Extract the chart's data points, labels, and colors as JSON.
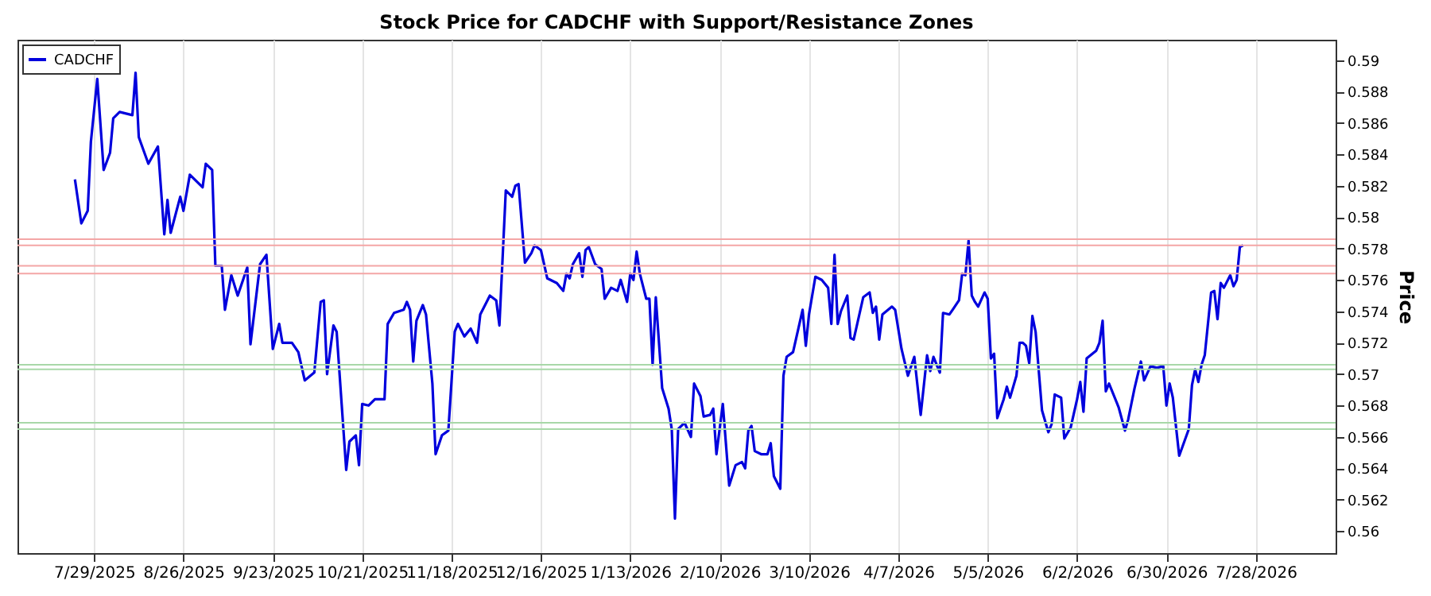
{
  "chart_data": {
    "type": "line",
    "title": "Stock Price for CADCHF with Support/Resistance Zones",
    "ylabel": "Price",
    "x": [
      "2025-07-23",
      "2025-07-25",
      "2025-07-27",
      "2025-07-28",
      "2025-07-30",
      "2025-08-01",
      "2025-08-03",
      "2025-08-04",
      "2025-08-06",
      "2025-08-08",
      "2025-08-10",
      "2025-08-11",
      "2025-08-12",
      "2025-08-15",
      "2025-08-18",
      "2025-08-20",
      "2025-08-21",
      "2025-08-22",
      "2025-08-25",
      "2025-08-26",
      "2025-08-28",
      "2025-09-01",
      "2025-09-02",
      "2025-09-04",
      "2025-09-05",
      "2025-09-07",
      "2025-09-08",
      "2025-09-10",
      "2025-09-12",
      "2025-09-15",
      "2025-09-16",
      "2025-09-19",
      "2025-09-21",
      "2025-09-23",
      "2025-09-25",
      "2025-09-26",
      "2025-09-29",
      "2025-10-01",
      "2025-10-03",
      "2025-10-06",
      "2025-10-08",
      "2025-10-09",
      "2025-10-10",
      "2025-10-12",
      "2025-10-13",
      "2025-10-16",
      "2025-10-17",
      "2025-10-19",
      "2025-10-20",
      "2025-10-21",
      "2025-10-23",
      "2025-10-25",
      "2025-10-28",
      "2025-10-29",
      "2025-10-31",
      "2025-11-03",
      "2025-11-04",
      "2025-11-05",
      "2025-11-06",
      "2025-11-07",
      "2025-11-09",
      "2025-11-10",
      "2025-11-12",
      "2025-11-13",
      "2025-11-15",
      "2025-11-17",
      "2025-11-19",
      "2025-11-20",
      "2025-11-22",
      "2025-11-24",
      "2025-11-26",
      "2025-11-27",
      "2025-11-29",
      "2025-11-30",
      "2025-12-02",
      "2025-12-03",
      "2025-12-05",
      "2025-12-07",
      "2025-12-08",
      "2025-12-09",
      "2025-12-11",
      "2025-12-13",
      "2025-12-14",
      "2025-12-16",
      "2025-12-18",
      "2025-12-21",
      "2025-12-23",
      "2025-12-24",
      "2025-12-25",
      "2025-12-26",
      "2025-12-28",
      "2025-12-29",
      "2025-12-30",
      "2025-12-31",
      "2026-01-02",
      "2026-01-04",
      "2026-01-05",
      "2026-01-07",
      "2026-01-09",
      "2026-01-10",
      "2026-01-12",
      "2026-01-13",
      "2026-01-14",
      "2026-01-15",
      "2026-01-16",
      "2026-01-18",
      "2026-01-19",
      "2026-01-20",
      "2026-01-21",
      "2026-01-23",
      "2026-01-25",
      "2026-01-26",
      "2026-01-27",
      "2026-01-28",
      "2026-01-30",
      "2026-02-01",
      "2026-02-02",
      "2026-02-04",
      "2026-02-05",
      "2026-02-07",
      "2026-02-08",
      "2026-02-09",
      "2026-02-11",
      "2026-02-13",
      "2026-02-15",
      "2026-02-17",
      "2026-02-18",
      "2026-02-19",
      "2026-02-20",
      "2026-02-21",
      "2026-02-23",
      "2026-02-25",
      "2026-02-26",
      "2026-02-27",
      "2026-03-01",
      "2026-03-02",
      "2026-03-03",
      "2026-03-05",
      "2026-03-08",
      "2026-03-09",
      "2026-03-10",
      "2026-03-12",
      "2026-03-14",
      "2026-03-16",
      "2026-03-17",
      "2026-03-18",
      "2026-03-19",
      "2026-03-20",
      "2026-03-22",
      "2026-03-23",
      "2026-03-24",
      "2026-03-27",
      "2026-03-29",
      "2026-03-30",
      "2026-03-31",
      "2026-04-01",
      "2026-04-02",
      "2026-04-05",
      "2026-04-06",
      "2026-04-08",
      "2026-04-10",
      "2026-04-12",
      "2026-04-14",
      "2026-04-16",
      "2026-04-17",
      "2026-04-18",
      "2026-04-20",
      "2026-04-21",
      "2026-04-23",
      "2026-04-24",
      "2026-04-26",
      "2026-04-27",
      "2026-04-28",
      "2026-04-29",
      "2026-04-30",
      "2026-05-01",
      "2026-05-02",
      "2026-05-04",
      "2026-05-05",
      "2026-05-06",
      "2026-05-07",
      "2026-05-08",
      "2026-05-10",
      "2026-05-11",
      "2026-05-12",
      "2026-05-14",
      "2026-05-15",
      "2026-05-16",
      "2026-05-17",
      "2026-05-18",
      "2026-05-19",
      "2026-05-20",
      "2026-05-22",
      "2026-05-24",
      "2026-05-25",
      "2026-05-26",
      "2026-05-28",
      "2026-05-29",
      "2026-05-31",
      "2026-06-02",
      "2026-06-03",
      "2026-06-04",
      "2026-06-05",
      "2026-06-08",
      "2026-06-09",
      "2026-06-10",
      "2026-06-11",
      "2026-06-12",
      "2026-06-15",
      "2026-06-17",
      "2026-06-18",
      "2026-06-20",
      "2026-06-22",
      "2026-06-23",
      "2026-06-25",
      "2026-06-27",
      "2026-06-29",
      "2026-06-30",
      "2026-07-01",
      "2026-07-02",
      "2026-07-04",
      "2026-07-07",
      "2026-07-08",
      "2026-07-09",
      "2026-07-10",
      "2026-07-11",
      "2026-07-12",
      "2026-07-14",
      "2026-07-15",
      "2026-07-16",
      "2026-07-17",
      "2026-07-18",
      "2026-07-20",
      "2026-07-21",
      "2026-07-22",
      "2026-07-23",
      "2026-07-24"
    ],
    "series": [
      {
        "name": "CADCHF",
        "color": "#0000dd",
        "values": [
          0.5824,
          0.5796,
          0.5804,
          0.5848,
          0.5888,
          0.583,
          0.5841,
          0.5863,
          0.5867,
          0.5866,
          0.5865,
          0.5892,
          0.5851,
          0.5834,
          0.5845,
          0.5789,
          0.5811,
          0.579,
          0.5813,
          0.5804,
          0.5827,
          0.5819,
          0.5834,
          0.583,
          0.5769,
          0.5769,
          0.5741,
          0.5763,
          0.575,
          0.5768,
          0.5719,
          0.577,
          0.5776,
          0.5716,
          0.5732,
          0.572,
          0.572,
          0.5714,
          0.5696,
          0.5701,
          0.5746,
          0.5747,
          0.57,
          0.5731,
          0.5727,
          0.5639,
          0.5657,
          0.5661,
          0.5642,
          0.5681,
          0.568,
          0.5684,
          0.5684,
          0.5732,
          0.5739,
          0.5741,
          0.5746,
          0.5741,
          0.5708,
          0.5734,
          0.5744,
          0.5738,
          0.5694,
          0.5649,
          0.5661,
          0.5664,
          0.5727,
          0.5732,
          0.5724,
          0.5729,
          0.572,
          0.5738,
          0.5746,
          0.575,
          0.5747,
          0.5731,
          0.5817,
          0.5813,
          0.582,
          0.5821,
          0.5771,
          0.5777,
          0.5782,
          0.5779,
          0.5761,
          0.5758,
          0.5753,
          0.5764,
          0.5761,
          0.577,
          0.5777,
          0.5762,
          0.5779,
          0.5781,
          0.577,
          0.5767,
          0.5748,
          0.5755,
          0.5753,
          0.576,
          0.5746,
          0.5764,
          0.576,
          0.5778,
          0.5764,
          0.5748,
          0.5748,
          0.5706,
          0.5749,
          0.5691,
          0.5678,
          0.5665,
          0.5608,
          0.5665,
          0.5669,
          0.566,
          0.5694,
          0.5686,
          0.5673,
          0.5674,
          0.5678,
          0.5649,
          0.5681,
          0.5629,
          0.5642,
          0.5644,
          0.564,
          0.5664,
          0.5667,
          0.5651,
          0.5649,
          0.5649,
          0.5656,
          0.5635,
          0.5627,
          0.5699,
          0.5711,
          0.5714,
          0.5741,
          0.5718,
          0.5738,
          0.5762,
          0.576,
          0.5755,
          0.5732,
          0.5776,
          0.5732,
          0.574,
          0.575,
          0.5723,
          0.5722,
          0.5749,
          0.5752,
          0.5739,
          0.5743,
          0.5722,
          0.5738,
          0.5743,
          0.5741,
          0.5716,
          0.5699,
          0.5711,
          0.5674,
          0.5712,
          0.5702,
          0.5711,
          0.5701,
          0.5739,
          0.5738,
          0.5741,
          0.5747,
          0.5764,
          0.5763,
          0.5785,
          0.575,
          0.5746,
          0.5743,
          0.5752,
          0.5748,
          0.571,
          0.5713,
          0.5672,
          0.5684,
          0.5692,
          0.5685,
          0.5699,
          0.572,
          0.572,
          0.5718,
          0.5707,
          0.5737,
          0.5727,
          0.5677,
          0.5663,
          0.5668,
          0.5687,
          0.5685,
          0.5659,
          0.5666,
          0.5684,
          0.5695,
          0.5676,
          0.571,
          0.5715,
          0.572,
          0.5734,
          0.5689,
          0.5694,
          0.5679,
          0.5664,
          0.5671,
          0.5691,
          0.5708,
          0.5696,
          0.5705,
          0.5704,
          0.5705,
          0.568,
          0.5694,
          0.5685,
          0.5648,
          0.5665,
          0.5693,
          0.5703,
          0.5695,
          0.5706,
          0.5712,
          0.5752,
          0.5753,
          0.5735,
          0.5758,
          0.5755,
          0.5763,
          0.5756,
          0.576,
          0.5781,
          0.5782
        ]
      }
    ],
    "xlim": [
      "2025-07-05",
      "2026-08-22"
    ],
    "xticks": [
      {
        "value": "2025-07-29",
        "label": "7/29/2025"
      },
      {
        "value": "2025-08-26",
        "label": "8/26/2025"
      },
      {
        "value": "2025-09-23",
        "label": "9/23/2025"
      },
      {
        "value": "2025-10-21",
        "label": "10/21/2025"
      },
      {
        "value": "2025-11-18",
        "label": "11/18/2025"
      },
      {
        "value": "2025-12-16",
        "label": "12/16/2025"
      },
      {
        "value": "2026-01-13",
        "label": "1/13/2026"
      },
      {
        "value": "2026-02-10",
        "label": "2/10/2026"
      },
      {
        "value": "2026-03-10",
        "label": "3/10/2026"
      },
      {
        "value": "2026-04-07",
        "label": "4/7/2026"
      },
      {
        "value": "2026-05-05",
        "label": "5/5/2026"
      },
      {
        "value": "2026-06-02",
        "label": "6/2/2026"
      },
      {
        "value": "2026-06-30",
        "label": "6/30/2026"
      },
      {
        "value": "2026-07-28",
        "label": "7/28/2026"
      }
    ],
    "ylim": [
      0.5586,
      0.5913
    ],
    "yticks": [
      0.56,
      0.562,
      0.564,
      0.566,
      0.568,
      0.57,
      0.572,
      0.574,
      0.576,
      0.578,
      0.58,
      0.582,
      0.584,
      0.586,
      0.588,
      0.59
    ],
    "ref_lines": [
      {
        "axis": "y",
        "value": 0.5786,
        "color": "#f4a6a6"
      },
      {
        "axis": "y",
        "value": 0.5782,
        "color": "#f4a6a6"
      },
      {
        "axis": "y",
        "value": 0.5769,
        "color": "#f4a6a6"
      },
      {
        "axis": "y",
        "value": 0.5764,
        "color": "#f4a6a6"
      },
      {
        "axis": "y",
        "value": 0.5706,
        "color": "#a8d8a8"
      },
      {
        "axis": "y",
        "value": 0.5703,
        "color": "#a8d8a8"
      },
      {
        "axis": "y",
        "value": 0.5669,
        "color": "#a8d8a8"
      },
      {
        "axis": "y",
        "value": 0.5665,
        "color": "#a8d8a8"
      }
    ],
    "grid": "x",
    "legend": "top left",
    "line_style": "solid",
    "marker": "none"
  }
}
